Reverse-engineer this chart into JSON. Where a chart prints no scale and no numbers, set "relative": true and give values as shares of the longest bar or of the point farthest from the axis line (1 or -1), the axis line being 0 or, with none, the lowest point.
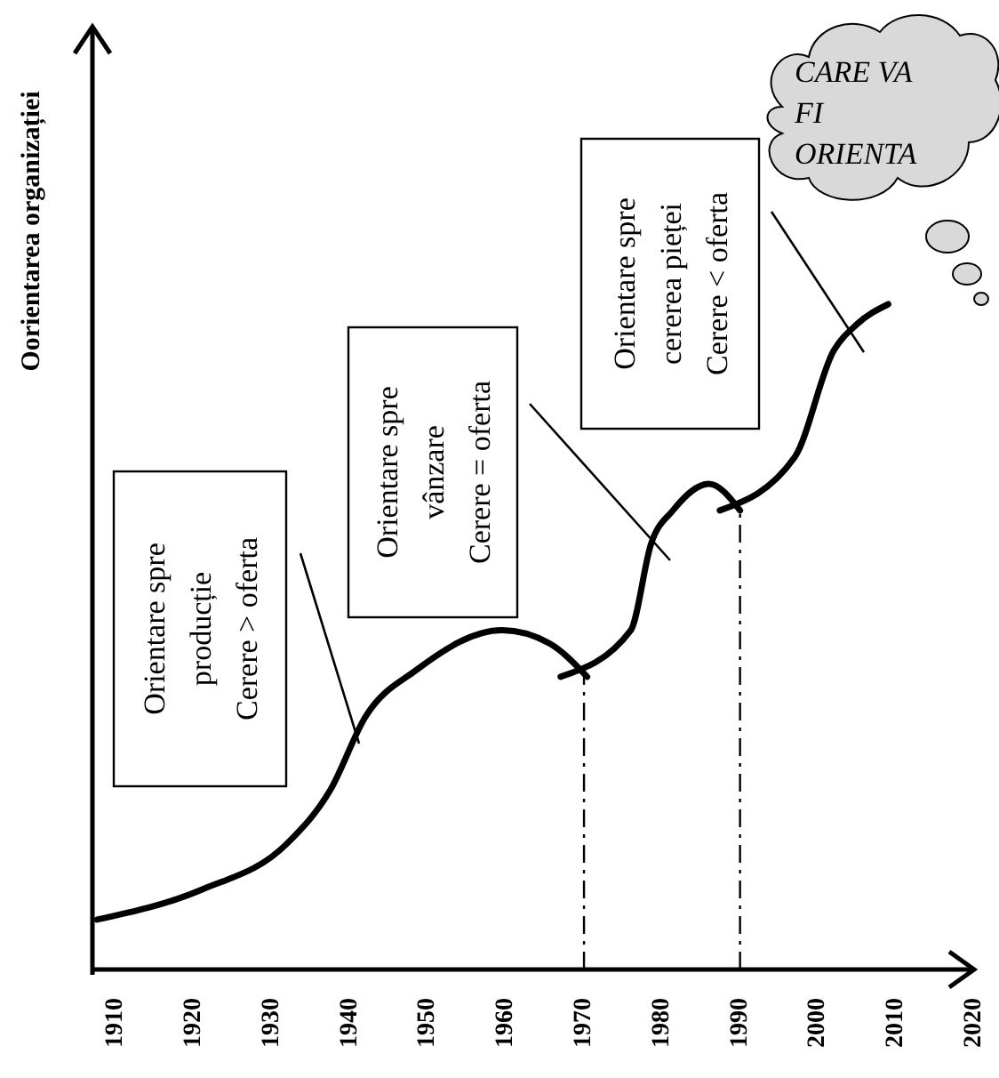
{
  "chart_data": {
    "type": "line",
    "relative": true,
    "ylabel": "Oorientarea organizației",
    "xlim": [
      1907,
      2020
    ],
    "xticks": [
      1910,
      1920,
      1930,
      1940,
      1950,
      1960,
      1970,
      1980,
      1990,
      2000,
      2010,
      2020
    ],
    "marker": "none",
    "line_style": "solid",
    "series": [
      {
        "color": "#000000",
        "x": [
          1907.6,
          1921,
          1932,
          1937.5,
          1942,
          1948.5,
          1959.5,
          1965.6,
          1970.4
        ],
        "values": [
          0.075,
          0.12,
          0.19,
          0.27,
          0.38,
          0.45,
          0.51,
          0.49,
          0.44
        ]
      },
      {
        "color": "#000000",
        "x": [
          1967,
          1976,
          1978.6,
          1981.4,
          1986,
          1990
        ],
        "values": [
          0.44,
          0.51,
          0.64,
          0.69,
          0.73,
          0.69
        ]
      },
      {
        "color": "#000000",
        "x": [
          1987.4,
          1997,
          2002,
          2005,
          2009
        ],
        "values": [
          0.69,
          0.77,
          0.93,
          0.97,
          1
        ]
      }
    ],
    "ref_lines": [
      {
        "axis": "x",
        "value": 1970,
        "label": null,
        "color": "#000000",
        "line_style": "dashdot"
      },
      {
        "axis": "x",
        "value": 1990,
        "label": null,
        "color": "#000000",
        "line_style": "dashdot"
      }
    ],
    "annotations": [
      "Orientare spre\nproducție\nCerere > oferta",
      "Orientare spre\nvânzare\nCerere = oferta",
      "Orientare spre\ncererea pieței\nCerere < oferta",
      "CARE VA\nFI\nORIENTA"
    ]
  }
}
